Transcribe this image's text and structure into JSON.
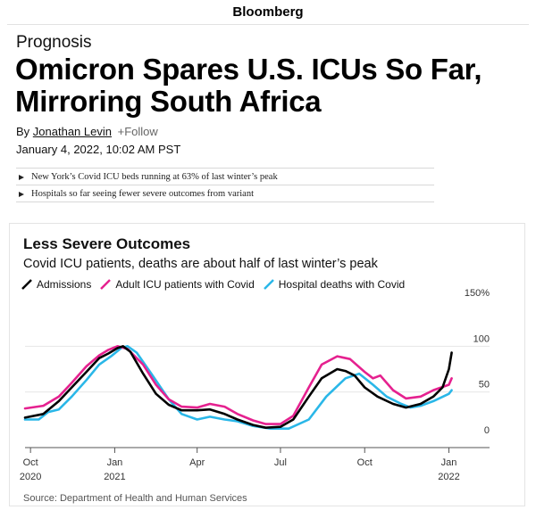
{
  "header": {
    "brand": "Bloomberg"
  },
  "article": {
    "kicker": "Prognosis",
    "headline": "Omicron Spares U.S. ICUs So Far, Mirroring South Africa",
    "byline_prefix": "By",
    "author": "Jonathan Levin",
    "follow_label": "+Follow",
    "date": "January 4, 2022, 10:02 AM PST",
    "bullets": [
      "New York’s Covid ICU beds running at 63% of last winter’s peak",
      "Hospitals so far seeing fewer severe outcomes from variant"
    ]
  },
  "chart": {
    "title": "Less Severe Outcomes",
    "subtitle": "Covid ICU patients, deaths are about half of last winter’s peak",
    "source": "Source: Department of Health and Human Services"
  },
  "chart_data": {
    "type": "line",
    "title": "Less Severe Outcomes",
    "subtitle": "Covid ICU patients, deaths are about half of last winter’s peak",
    "x_tick_labels": [
      {
        "month": "Oct",
        "year": "2020",
        "x": "2020-10"
      },
      {
        "month": "Jan",
        "year": "2021",
        "x": "2021-01"
      },
      {
        "month": "Apr",
        "year": "",
        "x": "2021-04"
      },
      {
        "month": "Jul",
        "year": "",
        "x": "2021-07"
      },
      {
        "month": "Oct",
        "year": "",
        "x": "2021-10"
      },
      {
        "month": "Jan",
        "year": "2022",
        "x": "2022-01"
      }
    ],
    "y_tick_labels": [
      "0",
      "50",
      "100",
      "150%"
    ],
    "y_ticks": [
      0,
      50,
      100,
      150
    ],
    "ylim": [
      0,
      150
    ],
    "xlim": [
      "2020-09-25",
      "2022-01-20"
    ],
    "grid": "horizontal",
    "legend_position": "top-left",
    "series": [
      {
        "name": "Admissions",
        "color": "#000000",
        "points": [
          [
            "2020-09-25",
            22
          ],
          [
            "2020-10-15",
            26
          ],
          [
            "2020-11-01",
            40
          ],
          [
            "2020-11-15",
            55
          ],
          [
            "2020-12-01",
            72
          ],
          [
            "2020-12-15",
            87
          ],
          [
            "2020-12-25",
            92
          ],
          [
            "2021-01-04",
            98
          ],
          [
            "2021-01-10",
            100
          ],
          [
            "2021-01-18",
            94
          ],
          [
            "2021-02-01",
            70
          ],
          [
            "2021-02-15",
            48
          ],
          [
            "2021-03-01",
            36
          ],
          [
            "2021-03-15",
            30
          ],
          [
            "2021-04-01",
            30
          ],
          [
            "2021-04-15",
            31
          ],
          [
            "2021-05-01",
            26
          ],
          [
            "2021-05-15",
            20
          ],
          [
            "2021-06-01",
            14
          ],
          [
            "2021-06-15",
            11
          ],
          [
            "2021-07-01",
            12
          ],
          [
            "2021-07-15",
            20
          ],
          [
            "2021-08-01",
            45
          ],
          [
            "2021-08-15",
            65
          ],
          [
            "2021-09-01",
            75
          ],
          [
            "2021-09-10",
            73
          ],
          [
            "2021-09-20",
            68
          ],
          [
            "2021-10-01",
            55
          ],
          [
            "2021-10-15",
            45
          ],
          [
            "2021-11-01",
            37
          ],
          [
            "2021-11-15",
            33
          ],
          [
            "2021-12-01",
            37
          ],
          [
            "2021-12-15",
            45
          ],
          [
            "2021-12-25",
            55
          ],
          [
            "2022-01-01",
            75
          ],
          [
            "2022-01-04",
            93
          ]
        ]
      },
      {
        "name": "Adult ICU patients with Covid",
        "color": "#e5218f",
        "points": [
          [
            "2020-09-25",
            32
          ],
          [
            "2020-10-15",
            35
          ],
          [
            "2020-11-01",
            45
          ],
          [
            "2020-11-15",
            60
          ],
          [
            "2020-12-01",
            78
          ],
          [
            "2020-12-15",
            90
          ],
          [
            "2020-12-25",
            96
          ],
          [
            "2021-01-04",
            100
          ],
          [
            "2021-01-15",
            97
          ],
          [
            "2021-02-01",
            80
          ],
          [
            "2021-02-15",
            58
          ],
          [
            "2021-03-01",
            42
          ],
          [
            "2021-03-15",
            34
          ],
          [
            "2021-04-01",
            33
          ],
          [
            "2021-04-15",
            37
          ],
          [
            "2021-05-01",
            34
          ],
          [
            "2021-05-15",
            26
          ],
          [
            "2021-06-01",
            19
          ],
          [
            "2021-06-15",
            15
          ],
          [
            "2021-07-01",
            15
          ],
          [
            "2021-07-15",
            24
          ],
          [
            "2021-08-01",
            55
          ],
          [
            "2021-08-15",
            80
          ],
          [
            "2021-09-01",
            89
          ],
          [
            "2021-09-15",
            86
          ],
          [
            "2021-10-01",
            72
          ],
          [
            "2021-10-10",
            65
          ],
          [
            "2021-10-18",
            68
          ],
          [
            "2021-11-01",
            52
          ],
          [
            "2021-11-15",
            43
          ],
          [
            "2021-12-01",
            45
          ],
          [
            "2021-12-15",
            52
          ],
          [
            "2022-01-01",
            58
          ],
          [
            "2022-01-04",
            65
          ]
        ]
      },
      {
        "name": "Hospital deaths with Covid",
        "color": "#2ab7e8",
        "points": [
          [
            "2020-09-25",
            20
          ],
          [
            "2020-10-10",
            20
          ],
          [
            "2020-10-20",
            28
          ],
          [
            "2020-11-01",
            31
          ],
          [
            "2020-11-15",
            45
          ],
          [
            "2020-12-01",
            63
          ],
          [
            "2020-12-15",
            80
          ],
          [
            "2020-12-28",
            89
          ],
          [
            "2021-01-08",
            98
          ],
          [
            "2021-01-15",
            100
          ],
          [
            "2021-01-25",
            93
          ],
          [
            "2021-02-10",
            70
          ],
          [
            "2021-03-01",
            42
          ],
          [
            "2021-03-15",
            26
          ],
          [
            "2021-04-01",
            20
          ],
          [
            "2021-04-15",
            23
          ],
          [
            "2021-05-01",
            20
          ],
          [
            "2021-05-15",
            18
          ],
          [
            "2021-06-01",
            13
          ],
          [
            "2021-06-20",
            10
          ],
          [
            "2021-07-10",
            10
          ],
          [
            "2021-08-01",
            20
          ],
          [
            "2021-08-20",
            45
          ],
          [
            "2021-09-10",
            65
          ],
          [
            "2021-09-25",
            70
          ],
          [
            "2021-10-10",
            58
          ],
          [
            "2021-10-25",
            45
          ],
          [
            "2021-11-10",
            37
          ],
          [
            "2021-11-20",
            33
          ],
          [
            "2021-12-01",
            35
          ],
          [
            "2021-12-15",
            40
          ],
          [
            "2022-01-01",
            48
          ],
          [
            "2022-01-04",
            52
          ]
        ]
      }
    ]
  }
}
